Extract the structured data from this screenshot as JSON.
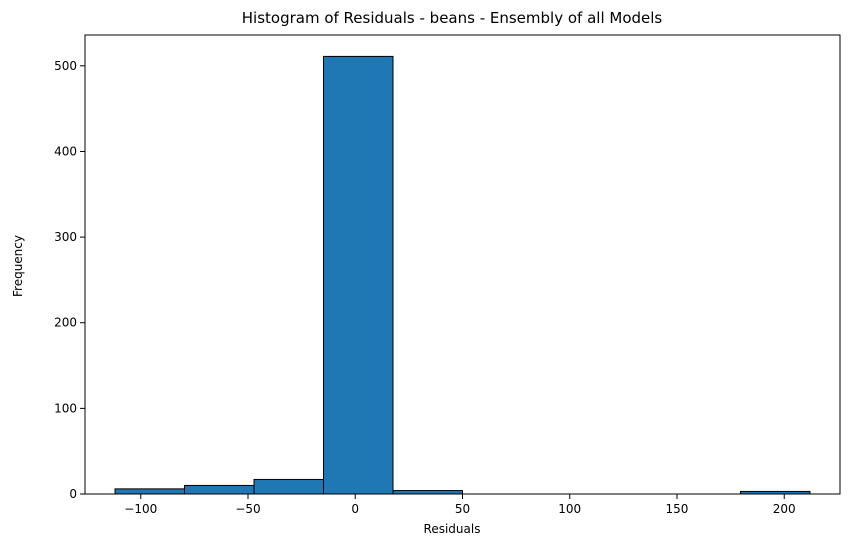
{
  "chart_data": {
    "type": "bar",
    "title": "Histogram of Residuals - beans  - Ensembly of all Models",
    "xlabel": "Residuals",
    "ylabel": "Frequency",
    "xlim": [
      -126,
      226
    ],
    "ylim": [
      0,
      536
    ],
    "bins": [
      {
        "x0": -112.0,
        "x1": -79.6,
        "count": 6
      },
      {
        "x0": -79.6,
        "x1": -47.2,
        "count": 10
      },
      {
        "x0": -47.2,
        "x1": -14.8,
        "count": 17
      },
      {
        "x0": -14.8,
        "x1": 17.6,
        "count": 511
      },
      {
        "x0": 17.6,
        "x1": 50.0,
        "count": 4
      },
      {
        "x0": 50.0,
        "x1": 82.4,
        "count": 0
      },
      {
        "x0": 82.4,
        "x1": 114.8,
        "count": 0
      },
      {
        "x0": 114.8,
        "x1": 147.2,
        "count": 0
      },
      {
        "x0": 147.2,
        "x1": 179.6,
        "count": 0
      },
      {
        "x0": 179.6,
        "x1": 212.0,
        "count": 3
      }
    ],
    "x_ticks": [
      {
        "value": -100,
        "label": "−100"
      },
      {
        "value": -50,
        "label": "−50"
      },
      {
        "value": 0,
        "label": "0"
      },
      {
        "value": 50,
        "label": "50"
      },
      {
        "value": 100,
        "label": "100"
      },
      {
        "value": 150,
        "label": "150"
      },
      {
        "value": 200,
        "label": "200"
      }
    ],
    "y_ticks": [
      {
        "value": 0,
        "label": "0"
      },
      {
        "value": 100,
        "label": "100"
      },
      {
        "value": 200,
        "label": "200"
      },
      {
        "value": 300,
        "label": "300"
      },
      {
        "value": 400,
        "label": "400"
      },
      {
        "value": 500,
        "label": "500"
      }
    ],
    "grid": false,
    "colors": {
      "bar_fill": "#1f77b4",
      "bar_edge": "#000000"
    }
  }
}
